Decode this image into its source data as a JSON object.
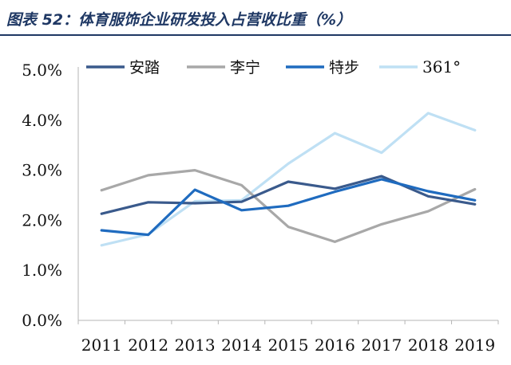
{
  "title": "图表 52：体育服饰企业研发投入占营收比重（%）",
  "chart_data": {
    "type": "line",
    "title": "图表 52：体育服饰企业研发投入占营收比重（%）",
    "xlabel": "",
    "ylabel": "",
    "categories": [
      "2011",
      "2012",
      "2013",
      "2014",
      "2015",
      "2016",
      "2017",
      "2018",
      "2019"
    ],
    "ylim": [
      0,
      5
    ],
    "yticks": [
      0,
      1,
      2,
      3,
      4,
      5
    ],
    "ytick_labels": [
      "0.0%",
      "1.0%",
      "2.0%",
      "3.0%",
      "4.0%",
      "5.0%"
    ],
    "grid": false,
    "legend_position": "top",
    "series": [
      {
        "name": "安踏",
        "color": "#3a5a8c",
        "values": [
          2.13,
          2.36,
          2.34,
          2.37,
          2.77,
          2.63,
          2.88,
          2.48,
          2.32
        ]
      },
      {
        "name": "李宁",
        "color": "#a8a8a8",
        "values": [
          2.6,
          2.9,
          3.0,
          2.7,
          1.87,
          1.57,
          1.92,
          2.18,
          2.62
        ]
      },
      {
        "name": "特步",
        "color": "#1f6bbf",
        "values": [
          1.8,
          1.71,
          2.61,
          2.2,
          2.29,
          2.57,
          2.82,
          2.58,
          2.4
        ]
      },
      {
        "name": "361°",
        "color": "#bfe0f4",
        "values": [
          1.5,
          1.72,
          2.38,
          2.4,
          3.13,
          3.74,
          3.35,
          4.14,
          3.8
        ]
      }
    ]
  }
}
